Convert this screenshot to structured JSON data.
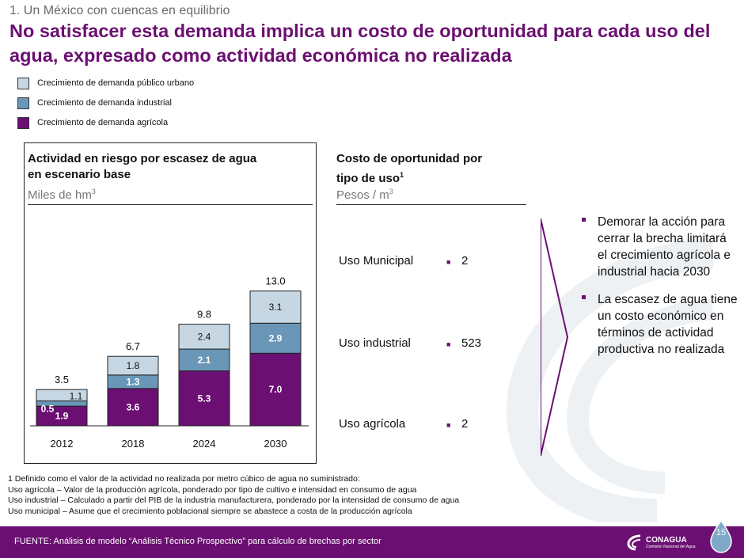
{
  "header": {
    "kicker": "1. Un México con cuencas en equilibrio",
    "headline": "No satisfacer esta demanda implica un costo de oportunidad para cada uso del agua, expresado como actividad económica no realizada"
  },
  "legend": [
    {
      "label": "Crecimiento de demanda público urbano",
      "color": "#c6d7e3"
    },
    {
      "label": "Crecimiento de demanda industrial",
      "color": "#6a97b8"
    },
    {
      "label": "Crecimiento de demanda agrícola",
      "color": "#6b0f72"
    }
  ],
  "left_panel": {
    "title_line1": "Actividad en riesgo por escasez de agua",
    "title_line2": "en escenario base",
    "unit": "Miles de hm",
    "unit_sup": "3"
  },
  "chart_data": {
    "type": "bar",
    "stacked": true,
    "categories": [
      "2012",
      "2018",
      "2024",
      "2030"
    ],
    "series": [
      {
        "name": "Crecimiento de demanda agrícola",
        "values": [
          1.9,
          3.6,
          5.3,
          7.0
        ],
        "color": "#6b0f72",
        "label_color": "#ffffff"
      },
      {
        "name": "Crecimiento de demanda industrial",
        "values": [
          0.5,
          1.3,
          2.1,
          2.9
        ],
        "color": "#6a97b8",
        "label_color": "#ffffff"
      },
      {
        "name": "Crecimiento de demanda público urbano",
        "values": [
          1.1,
          1.8,
          2.4,
          3.1
        ],
        "color": "#c6d7e3",
        "label_color": "#111111"
      }
    ],
    "totals": [
      "3.5",
      "6.7",
      "9.8",
      "13.0"
    ],
    "value_labels": [
      [
        "1.9",
        "3.6",
        "5.3",
        "7.0"
      ],
      [
        "0.5",
        "1.3",
        "2.1",
        "2.9"
      ],
      [
        "1.1",
        "1.8",
        "2.4",
        "3.1"
      ]
    ],
    "ylim": [
      0,
      13.0
    ],
    "grid": false,
    "legend": "top-left"
  },
  "right_panel": {
    "title_line1": "Costo de oportunidad por",
    "title_line2": "tipo de uso",
    "title_sup": "1",
    "unit": "Pesos / m",
    "unit_sup": "3",
    "rows": [
      {
        "label": "Uso Municipal",
        "value": "2"
      },
      {
        "label": "Uso industrial",
        "value": "523"
      },
      {
        "label": "Uso agrícola",
        "value": "2"
      }
    ]
  },
  "bullets": [
    "Demorar la acción para cerrar la brecha limitará el crecimiento agrícola e industrial hacia 2030",
    "La escasez de agua tiene un costo económico en términos de actividad productiva no realizada"
  ],
  "footnotes": [
    "1 Definido como el valor de la actividad no realizada por metro cúbico de agua no suministrado:",
    "Uso agrícola – Valor de la producción agrícola, ponderado por tipo de cultivo e intensidad en consumo de agua",
    "Uso industrial – Calculado a partir del PIB de la industria manufacturera, ponderado por la intensidad de consumo de agua",
    "Uso municipal – Asume que el crecimiento poblacional siempre se abastece a costa de la producción agrícola"
  ],
  "footer": {
    "source": "FUENTE: Análisis de modelo “Análisis Técnico Prospectivo” para cálculo de brechas por sector",
    "page_number": "15",
    "logo_text": "CONAGUA",
    "logo_sub": "Comisión Nacional del Agua",
    "color": "#6b0f72"
  }
}
